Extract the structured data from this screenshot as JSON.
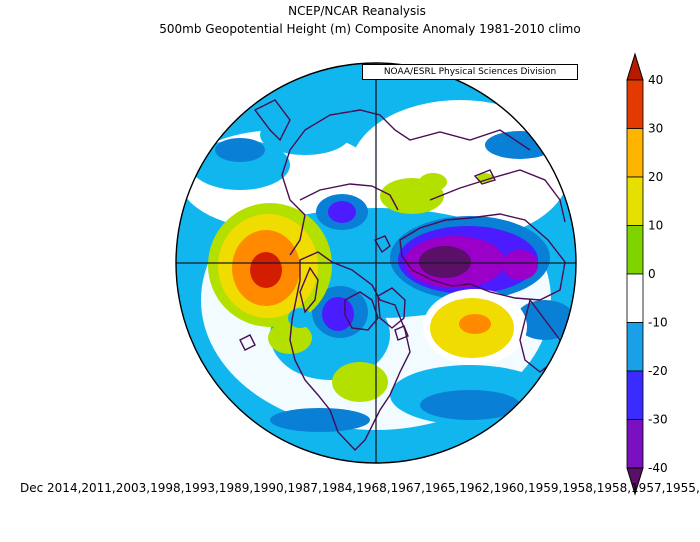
{
  "title": "NCEP/NCAR Reanalysis",
  "subtitle": "500mb Geopotential Height (m) Composite Anomaly 1981-2010 climo",
  "credit": "NOAA/ESRL Physical Sciences Division",
  "footer": "Dec 2014,2011,2003,1998,1993,1989,1990,1987,1984,1968,1967,1965,1962,1960,1959,1958,1958,1957,1955,",
  "colorbar": {
    "levels": [
      {
        "value": "40",
        "color": "#d31d00"
      },
      {
        "value": "30",
        "color": "#ff8a00"
      },
      {
        "value": "20",
        "color": "#f0dc00"
      },
      {
        "value": "10",
        "color": "#b4e000"
      },
      {
        "value": "0",
        "color": "#ffffff"
      },
      {
        "value": "-10",
        "color": "#0a7fd6"
      },
      {
        "value": "-20",
        "color": "#4b1cff"
      },
      {
        "value": "-30",
        "color": "#9a00c8"
      },
      {
        "value": "-40",
        "color": "#5a1066"
      }
    ]
  },
  "colors": {
    "ocean_base": "#12b6ef",
    "coast": "#4a0c52"
  }
}
